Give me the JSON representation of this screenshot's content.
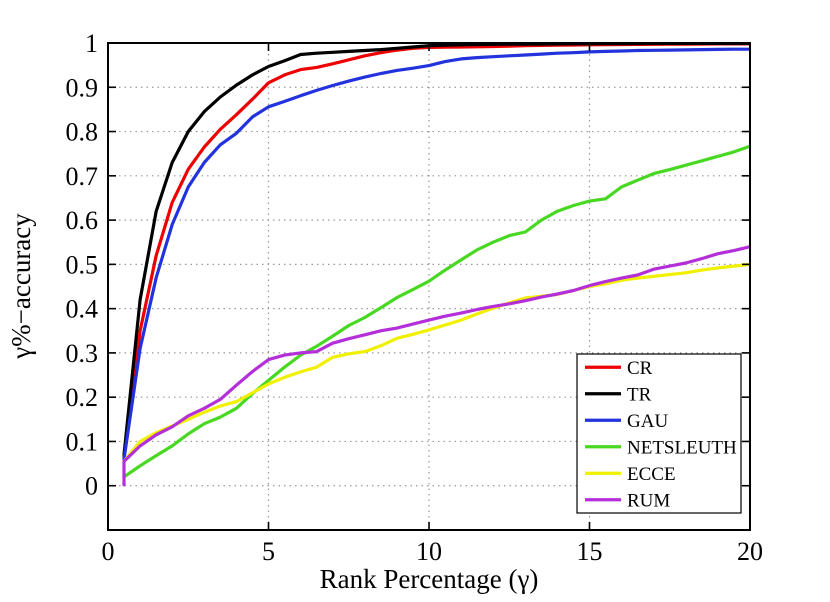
{
  "chart_data": {
    "type": "line",
    "title": "",
    "xlabel": "Rank Percentage (γ)",
    "ylabel": "γ%−accuracy",
    "xlim": [
      0,
      20
    ],
    "ylim": [
      -0.1,
      1.0
    ],
    "x_ticks": [
      0,
      5,
      10,
      15,
      20
    ],
    "x_tick_labels": [
      "0",
      "5",
      "10",
      "15",
      "20"
    ],
    "y_ticks": [
      0,
      0.1,
      0.2,
      0.3,
      0.4,
      0.5,
      0.6,
      0.7,
      0.8,
      0.9,
      1.0
    ],
    "y_tick_labels": [
      "0",
      "0.1",
      "0.2",
      "0.3",
      "0.4",
      "0.5",
      "0.6",
      "0.7",
      "0.8",
      "0.9",
      "1"
    ],
    "grid": "dotted",
    "grid_color": "#999999",
    "legend_position": "lower-right",
    "legend_order": [
      "CR",
      "TR",
      "GAU",
      "NETSLEUTH",
      "ECCE",
      "RUM"
    ],
    "series": [
      {
        "name": "CR",
        "color": "#ee0000",
        "points": [
          [
            0.5,
            0.065
          ],
          [
            1,
            0.35
          ],
          [
            1.5,
            0.52
          ],
          [
            2,
            0.64
          ],
          [
            2.5,
            0.715
          ],
          [
            3,
            0.765
          ],
          [
            3.5,
            0.805
          ],
          [
            4,
            0.838
          ],
          [
            4.5,
            0.873
          ],
          [
            5,
            0.91
          ],
          [
            5.5,
            0.928
          ],
          [
            6,
            0.94
          ],
          [
            6.5,
            0.945
          ],
          [
            7,
            0.953
          ],
          [
            7.5,
            0.962
          ],
          [
            8,
            0.971
          ],
          [
            8.5,
            0.978
          ],
          [
            9,
            0.984
          ],
          [
            9.5,
            0.988
          ],
          [
            10,
            0.99
          ],
          [
            10.5,
            0.9905
          ],
          [
            11,
            0.991
          ],
          [
            11.5,
            0.9915
          ],
          [
            12,
            0.992
          ],
          [
            12.5,
            0.993
          ],
          [
            13,
            0.994
          ],
          [
            13.5,
            0.9945
          ],
          [
            14,
            0.995
          ],
          [
            14.5,
            0.9955
          ],
          [
            15,
            0.996
          ],
          [
            15.5,
            0.9962
          ],
          [
            16,
            0.9965
          ],
          [
            16.5,
            0.9968
          ],
          [
            17,
            0.997
          ],
          [
            17.5,
            0.9972
          ],
          [
            18,
            0.9975
          ],
          [
            18.5,
            0.9977
          ],
          [
            19,
            0.998
          ],
          [
            19.5,
            0.998
          ],
          [
            20,
            0.998
          ]
        ]
      },
      {
        "name": "TR",
        "color": "#000000",
        "points": [
          [
            0.5,
            0.07
          ],
          [
            1,
            0.42
          ],
          [
            1.5,
            0.62
          ],
          [
            2,
            0.73
          ],
          [
            2.5,
            0.8
          ],
          [
            3,
            0.845
          ],
          [
            3.5,
            0.878
          ],
          [
            4,
            0.905
          ],
          [
            4.5,
            0.928
          ],
          [
            5,
            0.947
          ],
          [
            5.5,
            0.96
          ],
          [
            6,
            0.974
          ],
          [
            6.5,
            0.977
          ],
          [
            7,
            0.979
          ],
          [
            7.5,
            0.981
          ],
          [
            8,
            0.983
          ],
          [
            8.5,
            0.985
          ],
          [
            9,
            0.988
          ],
          [
            9.5,
            0.991
          ],
          [
            10,
            0.994
          ],
          [
            10.5,
            0.995
          ],
          [
            11,
            0.996
          ],
          [
            11.5,
            0.9965
          ],
          [
            12,
            0.997
          ],
          [
            12.5,
            0.9972
          ],
          [
            13,
            0.9975
          ],
          [
            13.5,
            0.9978
          ],
          [
            14,
            0.998
          ],
          [
            14.5,
            0.9982
          ],
          [
            15,
            0.9984
          ],
          [
            15.5,
            0.9985
          ],
          [
            16,
            0.9986
          ],
          [
            16.5,
            0.9988
          ],
          [
            17,
            0.999
          ],
          [
            17.5,
            0.999
          ],
          [
            18,
            0.999
          ],
          [
            18.5,
            0.999
          ],
          [
            19,
            0.999
          ],
          [
            19.5,
            0.999
          ],
          [
            20,
            0.999
          ]
        ]
      },
      {
        "name": "GAU",
        "color": "#2233dd",
        "points": [
          [
            0.5,
            0.06
          ],
          [
            1,
            0.31
          ],
          [
            1.5,
            0.47
          ],
          [
            2,
            0.59
          ],
          [
            2.5,
            0.675
          ],
          [
            3,
            0.73
          ],
          [
            3.5,
            0.77
          ],
          [
            4,
            0.796
          ],
          [
            4.5,
            0.833
          ],
          [
            5,
            0.856
          ],
          [
            5.5,
            0.868
          ],
          [
            6,
            0.881
          ],
          [
            6.5,
            0.893
          ],
          [
            7,
            0.904
          ],
          [
            7.5,
            0.914
          ],
          [
            8,
            0.923
          ],
          [
            8.5,
            0.931
          ],
          [
            9,
            0.938
          ],
          [
            9.5,
            0.943
          ],
          [
            10,
            0.949
          ],
          [
            10.5,
            0.958
          ],
          [
            11,
            0.964
          ],
          [
            11.5,
            0.967
          ],
          [
            12,
            0.969
          ],
          [
            12.5,
            0.971
          ],
          [
            13,
            0.973
          ],
          [
            13.5,
            0.975
          ],
          [
            14,
            0.977
          ],
          [
            14.5,
            0.978
          ],
          [
            15,
            0.98
          ],
          [
            15.5,
            0.981
          ],
          [
            16,
            0.982
          ],
          [
            16.5,
            0.983
          ],
          [
            17,
            0.9835
          ],
          [
            17.5,
            0.984
          ],
          [
            18,
            0.9845
          ],
          [
            18.5,
            0.985
          ],
          [
            19,
            0.9855
          ],
          [
            19.5,
            0.986
          ],
          [
            20,
            0.986
          ]
        ]
      },
      {
        "name": "NETSLEUTH",
        "color": "#47d921",
        "points": [
          [
            0.5,
            0.02
          ],
          [
            1,
            0.045
          ],
          [
            1.5,
            0.068
          ],
          [
            2,
            0.09
          ],
          [
            2.5,
            0.117
          ],
          [
            3,
            0.14
          ],
          [
            3.5,
            0.155
          ],
          [
            4,
            0.175
          ],
          [
            4.5,
            0.208
          ],
          [
            5,
            0.238
          ],
          [
            5.5,
            0.268
          ],
          [
            6,
            0.295
          ],
          [
            6.5,
            0.315
          ],
          [
            7,
            0.338
          ],
          [
            7.5,
            0.362
          ],
          [
            8,
            0.38
          ],
          [
            8.5,
            0.402
          ],
          [
            9,
            0.425
          ],
          [
            9.5,
            0.443
          ],
          [
            10,
            0.462
          ],
          [
            10.5,
            0.487
          ],
          [
            11,
            0.51
          ],
          [
            11.5,
            0.533
          ],
          [
            12,
            0.55
          ],
          [
            12.5,
            0.565
          ],
          [
            13,
            0.573
          ],
          [
            13.5,
            0.6
          ],
          [
            14,
            0.62
          ],
          [
            14.5,
            0.633
          ],
          [
            15,
            0.643
          ],
          [
            15.5,
            0.648
          ],
          [
            16,
            0.675
          ],
          [
            16.5,
            0.69
          ],
          [
            17,
            0.705
          ],
          [
            17.5,
            0.714
          ],
          [
            18,
            0.724
          ],
          [
            18.5,
            0.734
          ],
          [
            19,
            0.744
          ],
          [
            19.5,
            0.754
          ],
          [
            20,
            0.767
          ]
        ]
      },
      {
        "name": "ECCE",
        "color": "#f0f000",
        "points": [
          [
            0.5,
            0.055
          ],
          [
            1,
            0.1
          ],
          [
            1.5,
            0.12
          ],
          [
            2,
            0.135
          ],
          [
            2.5,
            0.15
          ],
          [
            3,
            0.166
          ],
          [
            3.5,
            0.18
          ],
          [
            4,
            0.19
          ],
          [
            4.5,
            0.21
          ],
          [
            5,
            0.23
          ],
          [
            5.5,
            0.245
          ],
          [
            6,
            0.257
          ],
          [
            6.5,
            0.268
          ],
          [
            7,
            0.29
          ],
          [
            7.5,
            0.298
          ],
          [
            8,
            0.303
          ],
          [
            8.5,
            0.316
          ],
          [
            9,
            0.333
          ],
          [
            9.5,
            0.342
          ],
          [
            10,
            0.352
          ],
          [
            10.5,
            0.363
          ],
          [
            11,
            0.374
          ],
          [
            11.5,
            0.388
          ],
          [
            12,
            0.401
          ],
          [
            12.5,
            0.413
          ],
          [
            13,
            0.424
          ],
          [
            13.5,
            0.428
          ],
          [
            14,
            0.432
          ],
          [
            14.5,
            0.441
          ],
          [
            15,
            0.45
          ],
          [
            15.5,
            0.456
          ],
          [
            16,
            0.464
          ],
          [
            16.5,
            0.469
          ],
          [
            17,
            0.473
          ],
          [
            17.5,
            0.477
          ],
          [
            18,
            0.481
          ],
          [
            18.5,
            0.487
          ],
          [
            19,
            0.492
          ],
          [
            19.5,
            0.496
          ],
          [
            20,
            0.5
          ]
        ]
      },
      {
        "name": "RUM",
        "color": "#b42fd9",
        "points": [
          [
            0.5,
            0.002
          ],
          [
            0.5,
            0.055
          ],
          [
            1,
            0.09
          ],
          [
            1.5,
            0.115
          ],
          [
            2,
            0.133
          ],
          [
            2.5,
            0.158
          ],
          [
            3,
            0.175
          ],
          [
            3.5,
            0.195
          ],
          [
            4,
            0.227
          ],
          [
            4.5,
            0.258
          ],
          [
            5,
            0.285
          ],
          [
            5.5,
            0.295
          ],
          [
            6,
            0.3
          ],
          [
            6.5,
            0.303
          ],
          [
            7,
            0.322
          ],
          [
            7.5,
            0.332
          ],
          [
            8,
            0.341
          ],
          [
            8.5,
            0.35
          ],
          [
            9,
            0.356
          ],
          [
            9.5,
            0.365
          ],
          [
            10,
            0.374
          ],
          [
            10.5,
            0.383
          ],
          [
            11,
            0.39
          ],
          [
            11.5,
            0.398
          ],
          [
            12,
            0.405
          ],
          [
            12.5,
            0.411
          ],
          [
            13,
            0.418
          ],
          [
            13.5,
            0.426
          ],
          [
            14,
            0.433
          ],
          [
            14.5,
            0.441
          ],
          [
            15,
            0.452
          ],
          [
            15.5,
            0.461
          ],
          [
            16,
            0.469
          ],
          [
            16.5,
            0.476
          ],
          [
            17,
            0.489
          ],
          [
            17.5,
            0.496
          ],
          [
            18,
            0.503
          ],
          [
            18.5,
            0.513
          ],
          [
            19,
            0.524
          ],
          [
            19.5,
            0.531
          ],
          [
            20,
            0.54
          ]
        ]
      }
    ]
  }
}
